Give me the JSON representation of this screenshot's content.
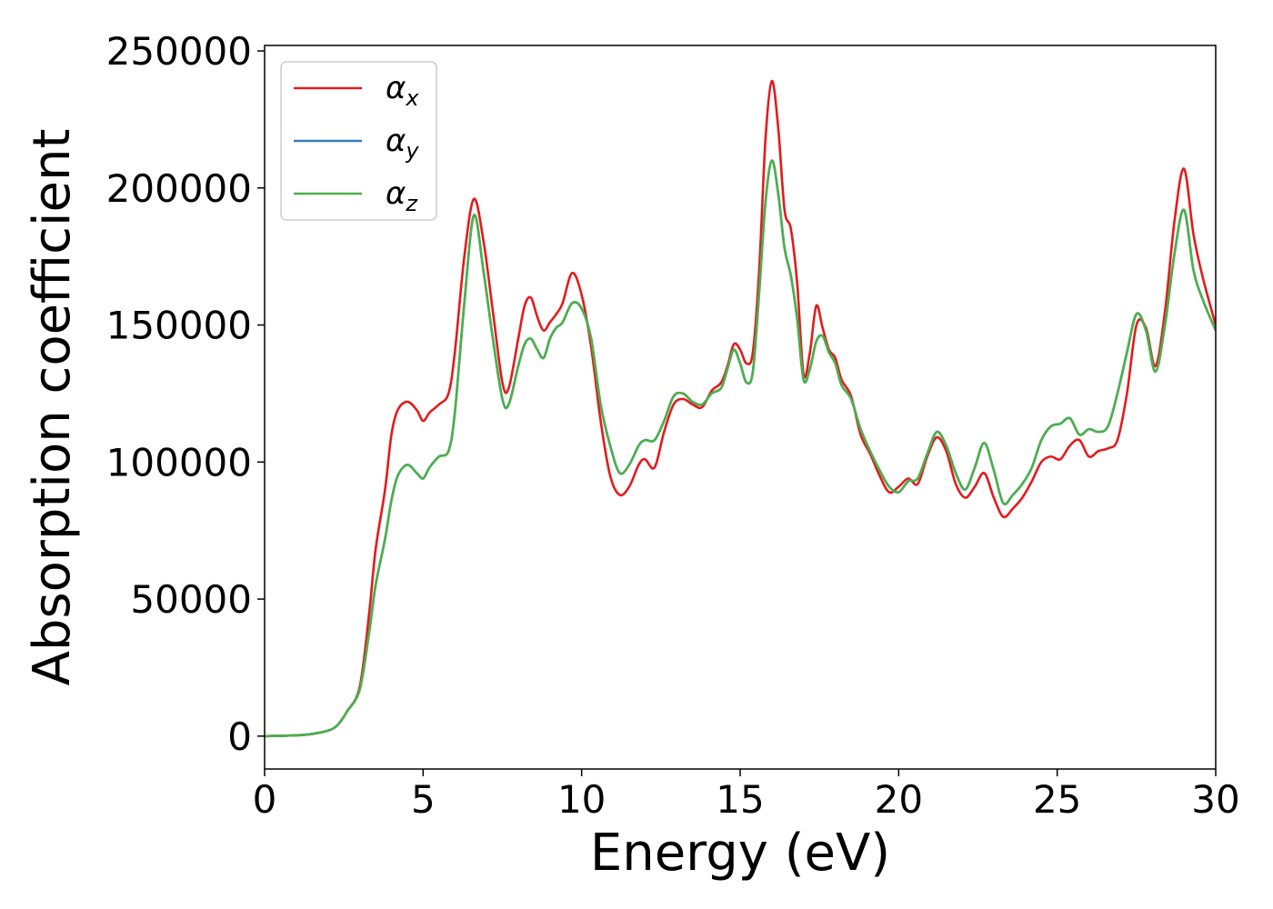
{
  "chart_data": {
    "type": "line",
    "title": "",
    "xlabel": "Energy (eV)",
    "ylabel": "Absorption coefficient",
    "xlim": [
      0,
      30
    ],
    "ylim": [
      -12000,
      252000
    ],
    "xticks": [
      0,
      5,
      10,
      15,
      20,
      25,
      30
    ],
    "yticks": [
      0,
      50000,
      100000,
      150000,
      200000,
      250000
    ],
    "grid": false,
    "legend_position": "top-left",
    "series": [
      {
        "name": "αx",
        "symbol": "α",
        "subscript": "x",
        "color": "#e41a1c",
        "x": [
          0,
          1,
          1.5,
          2,
          2.3,
          2.6,
          3,
          3.3,
          3.5,
          3.8,
          4,
          4.2,
          4.5,
          4.8,
          5,
          5.2,
          5.5,
          5.8,
          6,
          6.3,
          6.6,
          6.9,
          7.2,
          7.5,
          7.7,
          8,
          8.2,
          8.4,
          8.6,
          8.8,
          9,
          9.2,
          9.4,
          9.7,
          10,
          10.3,
          10.6,
          10.9,
          11.2,
          11.5,
          11.8,
          12,
          12.3,
          12.6,
          12.9,
          13.2,
          13.5,
          13.8,
          14.1,
          14.4,
          14.6,
          14.8,
          15,
          15.2,
          15.4,
          15.6,
          15.8,
          16,
          16.2,
          16.4,
          16.6,
          16.8,
          17,
          17.2,
          17.4,
          17.6,
          17.8,
          18,
          18.2,
          18.5,
          18.8,
          19.1,
          19.4,
          19.7,
          20,
          20.3,
          20.6,
          20.9,
          21.2,
          21.5,
          21.8,
          22.1,
          22.4,
          22.7,
          23,
          23.3,
          23.6,
          23.9,
          24.2,
          24.5,
          24.8,
          25.1,
          25.4,
          25.7,
          26,
          26.3,
          26.6,
          26.9,
          27.2,
          27.5,
          27.8,
          28.1,
          28.4,
          28.7,
          29,
          29.3,
          29.6,
          30
        ],
        "y": [
          0,
          300,
          800,
          2000,
          4000,
          9000,
          18000,
          45000,
          68000,
          90000,
          110000,
          119000,
          122000,
          119000,
          115000,
          118000,
          121000,
          125000,
          140000,
          175000,
          196000,
          181000,
          155000,
          129000,
          127000,
          145000,
          157000,
          160000,
          153000,
          148000,
          151000,
          154000,
          158000,
          169000,
          161000,
          142000,
          115000,
          95000,
          88000,
          91000,
          99000,
          101000,
          98000,
          111000,
          121000,
          123000,
          121000,
          120000,
          126000,
          129000,
          135000,
          143000,
          141000,
          136000,
          140000,
          170000,
          218000,
          239000,
          222000,
          192000,
          185000,
          165000,
          132000,
          140000,
          157000,
          149000,
          141000,
          138000,
          130000,
          124000,
          110000,
          103000,
          95000,
          89000,
          91000,
          94000,
          92000,
          102000,
          109000,
          104000,
          92000,
          87000,
          91000,
          96000,
          87000,
          80000,
          83000,
          87000,
          93000,
          100000,
          102000,
          101000,
          106000,
          108000,
          102000,
          104000,
          105000,
          108000,
          125000,
          150000,
          149000,
          135000,
          155000,
          188000,
          207000,
          183000,
          167000,
          150000
        ]
      },
      {
        "name": "αy",
        "symbol": "α",
        "subscript": "y",
        "color": "#377eb8",
        "x": [
          0,
          1,
          1.5,
          2,
          2.3,
          2.6,
          3,
          3.3,
          3.5,
          3.8,
          4,
          4.2,
          4.5,
          4.8,
          5,
          5.2,
          5.5,
          5.8,
          6,
          6.3,
          6.6,
          6.9,
          7.2,
          7.5,
          7.7,
          8,
          8.2,
          8.4,
          8.6,
          8.8,
          9,
          9.2,
          9.4,
          9.7,
          10,
          10.3,
          10.6,
          10.9,
          11.2,
          11.5,
          11.8,
          12,
          12.3,
          12.6,
          12.9,
          13.2,
          13.5,
          13.8,
          14.1,
          14.4,
          14.6,
          14.8,
          15,
          15.2,
          15.4,
          15.6,
          15.8,
          16,
          16.2,
          16.4,
          16.6,
          16.8,
          17,
          17.2,
          17.4,
          17.6,
          17.8,
          18,
          18.2,
          18.5,
          18.8,
          19.1,
          19.4,
          19.7,
          20,
          20.3,
          20.6,
          20.9,
          21.2,
          21.5,
          21.8,
          22.1,
          22.4,
          22.7,
          23,
          23.3,
          23.6,
          23.9,
          24.2,
          24.5,
          24.8,
          25.1,
          25.4,
          25.7,
          26,
          26.3,
          26.6,
          26.9,
          27.2,
          27.5,
          27.8,
          28.1,
          28.4,
          28.7,
          29,
          29.3,
          29.6,
          30
        ],
        "y": [
          0,
          300,
          800,
          2000,
          4000,
          9000,
          17000,
          38000,
          55000,
          72000,
          86000,
          95000,
          99000,
          96000,
          94000,
          98000,
          102000,
          104000,
          118000,
          158000,
          190000,
          170000,
          145000,
          123000,
          121000,
          135000,
          143000,
          145000,
          141000,
          138000,
          145000,
          149000,
          151000,
          158000,
          156000,
          145000,
          121000,
          106000,
          96000,
          99000,
          106000,
          108000,
          108000,
          115000,
          124000,
          125000,
          122000,
          121000,
          125000,
          127000,
          134000,
          141000,
          136000,
          129000,
          133000,
          162000,
          195000,
          210000,
          198000,
          178000,
          168000,
          152000,
          130000,
          134000,
          144000,
          146000,
          140000,
          136000,
          128000,
          123000,
          112000,
          104000,
          97000,
          91000,
          89000,
          93000,
          94000,
          103000,
          111000,
          106000,
          96000,
          90000,
          98000,
          107000,
          97000,
          85000,
          88000,
          92000,
          98000,
          108000,
          113000,
          114000,
          116000,
          110000,
          112000,
          111000,
          113000,
          125000,
          140000,
          154000,
          148000,
          133000,
          150000,
          176000,
          192000,
          170000,
          159000,
          148000
        ]
      },
      {
        "name": "αz",
        "symbol": "α",
        "subscript": "z",
        "color": "#4daf4a",
        "x": [
          0,
          1,
          1.5,
          2,
          2.3,
          2.6,
          3,
          3.3,
          3.5,
          3.8,
          4,
          4.2,
          4.5,
          4.8,
          5,
          5.2,
          5.5,
          5.8,
          6,
          6.3,
          6.6,
          6.9,
          7.2,
          7.5,
          7.7,
          8,
          8.2,
          8.4,
          8.6,
          8.8,
          9,
          9.2,
          9.4,
          9.7,
          10,
          10.3,
          10.6,
          10.9,
          11.2,
          11.5,
          11.8,
          12,
          12.3,
          12.6,
          12.9,
          13.2,
          13.5,
          13.8,
          14.1,
          14.4,
          14.6,
          14.8,
          15,
          15.2,
          15.4,
          15.6,
          15.8,
          16,
          16.2,
          16.4,
          16.6,
          16.8,
          17,
          17.2,
          17.4,
          17.6,
          17.8,
          18,
          18.2,
          18.5,
          18.8,
          19.1,
          19.4,
          19.7,
          20,
          20.3,
          20.6,
          20.9,
          21.2,
          21.5,
          21.8,
          22.1,
          22.4,
          22.7,
          23,
          23.3,
          23.6,
          23.9,
          24.2,
          24.5,
          24.8,
          25.1,
          25.4,
          25.7,
          26,
          26.3,
          26.6,
          26.9,
          27.2,
          27.5,
          27.8,
          28.1,
          28.4,
          28.7,
          29,
          29.3,
          29.6,
          30
        ],
        "y": [
          0,
          300,
          800,
          2000,
          4000,
          9000,
          17000,
          38000,
          55000,
          72000,
          86000,
          95000,
          99000,
          96000,
          94000,
          98000,
          102000,
          104000,
          118000,
          158000,
          190000,
          170000,
          145000,
          123000,
          121000,
          135000,
          143000,
          145000,
          141000,
          138000,
          145000,
          149000,
          151000,
          158000,
          156000,
          145000,
          121000,
          106000,
          96000,
          99000,
          106000,
          108000,
          108000,
          115000,
          124000,
          125000,
          122000,
          121000,
          125000,
          127000,
          134000,
          141000,
          136000,
          129000,
          133000,
          162000,
          195000,
          210000,
          198000,
          178000,
          168000,
          152000,
          130000,
          134000,
          144000,
          146000,
          140000,
          136000,
          128000,
          123000,
          112000,
          104000,
          97000,
          91000,
          89000,
          93000,
          94000,
          103000,
          111000,
          106000,
          96000,
          90000,
          98000,
          107000,
          97000,
          85000,
          88000,
          92000,
          98000,
          108000,
          113000,
          114000,
          116000,
          110000,
          112000,
          111000,
          113000,
          125000,
          140000,
          154000,
          148000,
          133000,
          150000,
          176000,
          192000,
          170000,
          159000,
          148000
        ]
      }
    ]
  }
}
